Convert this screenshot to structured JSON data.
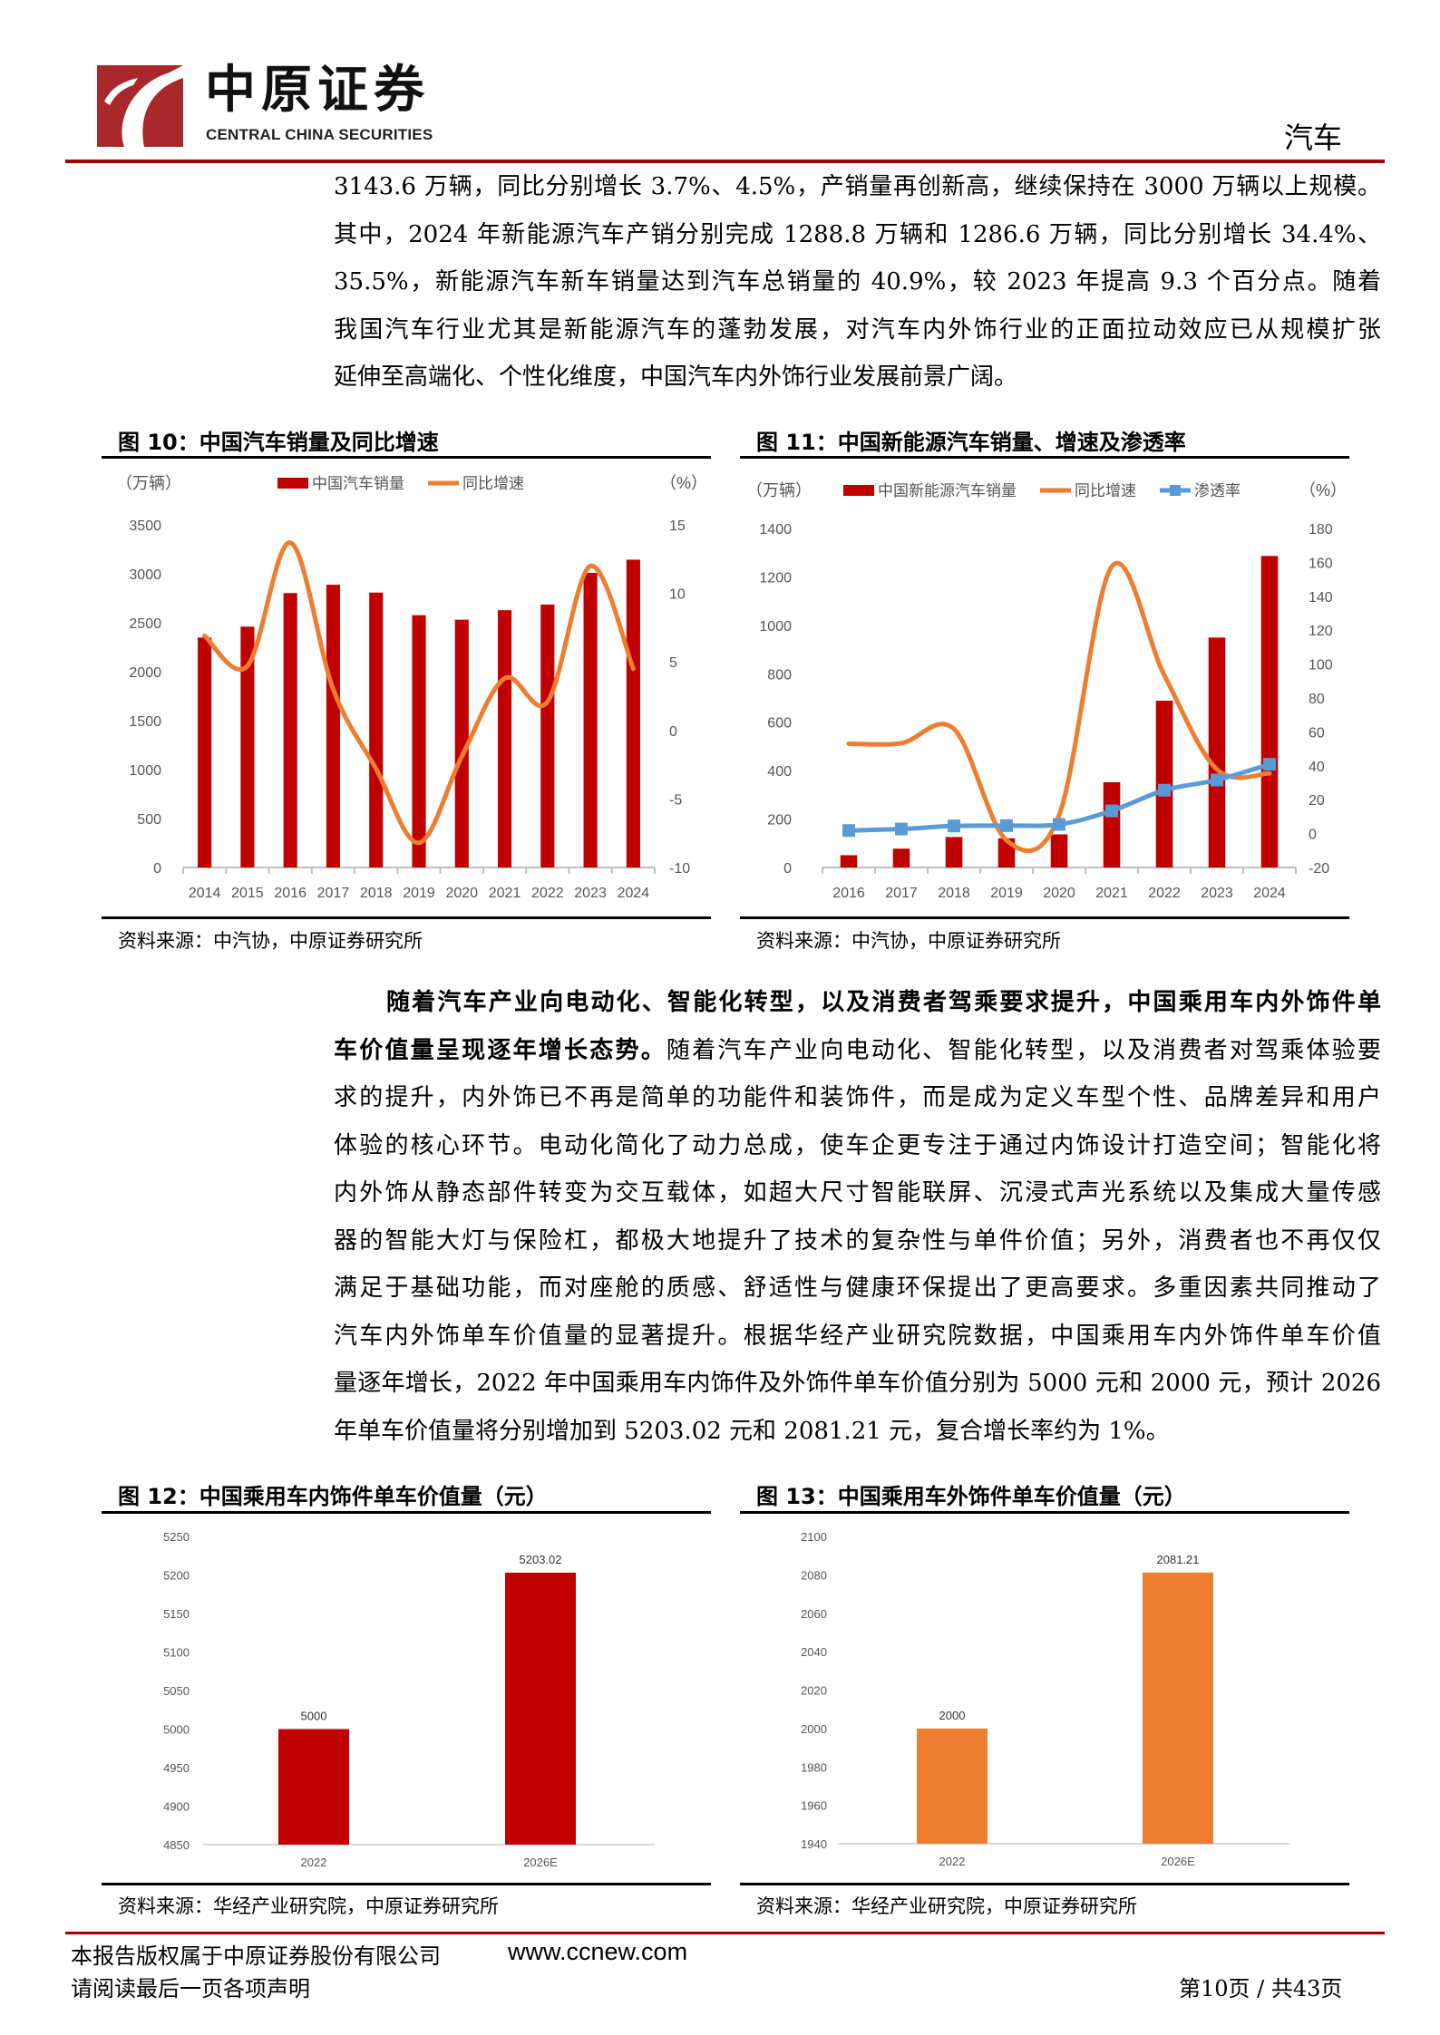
{
  "header": {
    "logo_cn": "中原证券",
    "logo_en": "CENTRAL CHINA SECURITIES",
    "sector": "汽车"
  },
  "paragraph1": [
    "3143.6 万辆，同比分别增长 3.7%、4.5%，产销量再创新高，继续保持在 3000 万辆以上规模。",
    "其中，2024 年新能源汽车产销分别完成 1288.8 万辆和 1286.6 万辆，同比分别增长 34.4%、",
    "35.5%，新能源汽车新车销量达到汽车总销量的 40.9%，较 2023 年提高 9.3 个百分点。随着",
    "我国汽车行业尤其是新能源汽车的蓬勃发展，对汽车内外饰行业的正面拉动效应已从规模扩张",
    "延伸至高端化、个性化维度，中国汽车内外饰行业发展前景广阔。"
  ],
  "paragraph2": {
    "line1_bold": "随着汽车产业向电动化、智能化转型，以及消费者驾乘要求提升，中国乘用车内外饰件单",
    "line2_bold": "车价值量呈现逐年增长态势。",
    "line2_rest": "随着汽车产业向电动化、智能化转型，以及消费者对驾乘体验要",
    "lines": [
      "求的提升，内外饰已不再是简单的功能件和装饰件，而是成为定义车型个性、品牌差异和用户",
      "体验的核心环节。电动化简化了动力总成，使车企更专注于通过内饰设计打造空间；智能化将",
      "内外饰从静态部件转变为交互载体，如超大尺寸智能联屏、沉浸式声光系统以及集成大量传感",
      "器的智能大灯与保险杠，都极大地提升了技术的复杂性与单件价值；另外，消费者也不再仅仅",
      "满足于基础功能，而对座舱的质感、舒适性与健康环保提出了更高要求。多重因素共同推动了",
      "汽车内外饰单车价值量的显著提升。根据华经产业研究院数据，中国乘用车内外饰件单车价值",
      "量逐年增长，2022 年中国乘用车内饰件及外饰件单车价值分别为 5000 元和 2000 元，预计 2026",
      "年单车价值量将分别增加到 5203.02 元和 2081.21 元，复合增长率约为 1%。"
    ]
  },
  "figures": [
    {
      "title": "图 10：中国汽车销量及同比增速",
      "source": "资料来源：中汽协，中原证券研究所"
    },
    {
      "title": "图 11：中国新能源汽车销量、增速及渗透率",
      "source": "资料来源：中汽协，中原证券研究所"
    },
    {
      "title": "图 12：中国乘用车内饰件单车价值量（元）",
      "source": "资料来源：华经产业研究院，中原证券研究所"
    },
    {
      "title": "图 13：中国乘用车外饰件单车价值量（元）",
      "source": "资料来源：华经产业研究院，中原证券研究所"
    }
  ],
  "colors": {
    "red": "#C00000",
    "orange": "#ED7D31",
    "blue": "#5B9BD5",
    "header_rule": "#A00000"
  },
  "chart_data": [
    {
      "type": "bar+line",
      "categories": [
        "2014",
        "2015",
        "2016",
        "2017",
        "2018",
        "2019",
        "2020",
        "2021",
        "2022",
        "2023",
        "2024"
      ],
      "ylabel": "（万辆）",
      "y2label": "（%）",
      "ylim": [
        0,
        3500
      ],
      "yticks": [
        0,
        500,
        1000,
        1500,
        2000,
        2500,
        3000,
        3500
      ],
      "y2lim": [
        -10,
        15
      ],
      "y2ticks": [
        -10,
        -5,
        0,
        5,
        10,
        15
      ],
      "legend_position": "top",
      "series": [
        {
          "name": "中国汽车销量",
          "kind": "bar",
          "axis": "left",
          "color": "#C00000",
          "values": [
            2349,
            2460,
            2803,
            2888,
            2808,
            2577,
            2531,
            2628,
            2686,
            3009,
            3144
          ]
        },
        {
          "name": "同比增速",
          "kind": "line",
          "axis": "right",
          "color": "#ED7D31",
          "values": [
            6.9,
            4.7,
            13.7,
            3.0,
            -2.8,
            -8.2,
            -1.9,
            3.8,
            2.1,
            12.0,
            4.5
          ]
        }
      ]
    },
    {
      "type": "bar+line",
      "categories": [
        "2016",
        "2017",
        "2018",
        "2019",
        "2020",
        "2021",
        "2022",
        "2023",
        "2024"
      ],
      "ylabel": "（万辆）",
      "y2label": "（%）",
      "ylim": [
        0,
        1400
      ],
      "yticks": [
        0,
        200,
        400,
        600,
        800,
        1000,
        1200,
        1400
      ],
      "y2lim": [
        -20,
        180
      ],
      "y2ticks": [
        -20,
        0,
        20,
        40,
        60,
        80,
        100,
        120,
        140,
        160,
        180
      ],
      "legend_position": "top",
      "series": [
        {
          "name": "中国新能源汽车销量",
          "kind": "bar",
          "axis": "left",
          "color": "#C00000",
          "values": [
            50.7,
            77.7,
            125.6,
            120.6,
            136.7,
            352.1,
            688.7,
            949.5,
            1286.6
          ]
        },
        {
          "name": "同比增速",
          "kind": "line",
          "axis": "right",
          "color": "#ED7D31",
          "values": [
            53.0,
            53.3,
            61.7,
            -4.0,
            10.9,
            157.5,
            93.4,
            37.9,
            35.5
          ]
        },
        {
          "name": "渗透率",
          "kind": "line-marker",
          "axis": "right",
          "color": "#5B9BD5",
          "values": [
            1.8,
            2.7,
            4.5,
            4.7,
            5.4,
            13.4,
            25.6,
            31.6,
            40.9
          ]
        }
      ]
    },
    {
      "type": "bar",
      "categories": [
        "2022",
        "2026E"
      ],
      "values": [
        5000,
        5203.02
      ],
      "data_labels": [
        "5000",
        "5203.02"
      ],
      "ylim": [
        4850,
        5250
      ],
      "yticks": [
        4850,
        4900,
        4950,
        5000,
        5050,
        5100,
        5150,
        5200,
        5250
      ],
      "color": "#C00000"
    },
    {
      "type": "bar",
      "categories": [
        "2022",
        "2026E"
      ],
      "values": [
        2000,
        2081.21
      ],
      "data_labels": [
        "2000",
        "2081.21"
      ],
      "ylim": [
        1940,
        2100
      ],
      "yticks": [
        1940,
        1960,
        1980,
        2000,
        2020,
        2040,
        2060,
        2080,
        2100
      ],
      "color": "#ED7D31"
    }
  ],
  "footer": {
    "copyright": "本报告版权属于中原证券股份有限公司",
    "website": "www.ccnew.com",
    "disclaimer": "请阅读最后一页各项声明",
    "page": "第10页 / 共43页"
  }
}
